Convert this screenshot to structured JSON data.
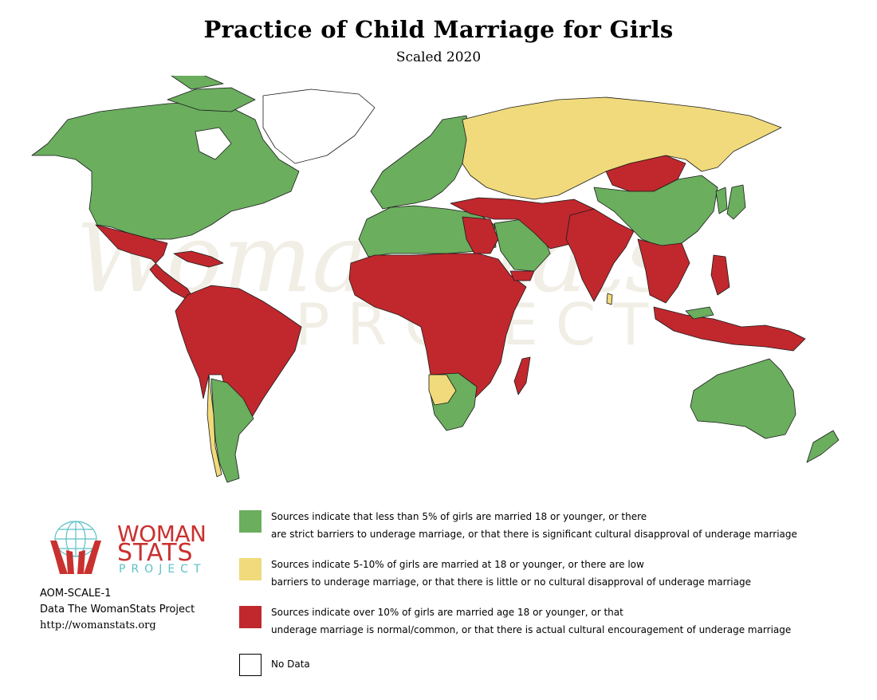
{
  "title": "Practice of Child Marriage for Girls",
  "subtitle": "Scaled 2020",
  "watermark": {
    "main": "WomanStats",
    "sub": "PROJECT"
  },
  "colors": {
    "low": "#6aae5e",
    "moderate": "#f0da7b",
    "high": "#c0282d",
    "no_data": "#ffffff",
    "border": "#1b1b1b",
    "logo_red": "#c9312f",
    "logo_teal": "#5cc1c4"
  },
  "legend": [
    {
      "category": "low",
      "color": "#6aae5e",
      "line1": "Sources indicate that less than 5% of girls are married 18 or younger, or there",
      "line2": "are strict barriers to underage marriage, or that there is significant cultural disapproval of underage marriage"
    },
    {
      "category": "moderate",
      "color": "#f0da7b",
      "line1": "Sources indicate 5-10% of girls are married at 18 or younger, or there are low",
      "line2": "barriers to underage marriage, or that there is little or no cultural disapproval of underage marriage"
    },
    {
      "category": "high",
      "color": "#c0282d",
      "line1": "Sources indicate over 10% of girls are married age 18 or younger, or that",
      "line2": "underage marriage is normal/common, or that there is actual cultural encouragement of underage marriage"
    },
    {
      "category": "no_data",
      "color": "#ffffff",
      "line1": "No Data",
      "line2": ""
    }
  ],
  "logo": {
    "line1": "WOMAN",
    "line2": "STATS",
    "line3": "PROJECT"
  },
  "credits": {
    "code": "AOM-SCALE-1",
    "source": "Data The WomanStats Project",
    "url": "http://womanstats.org"
  }
}
